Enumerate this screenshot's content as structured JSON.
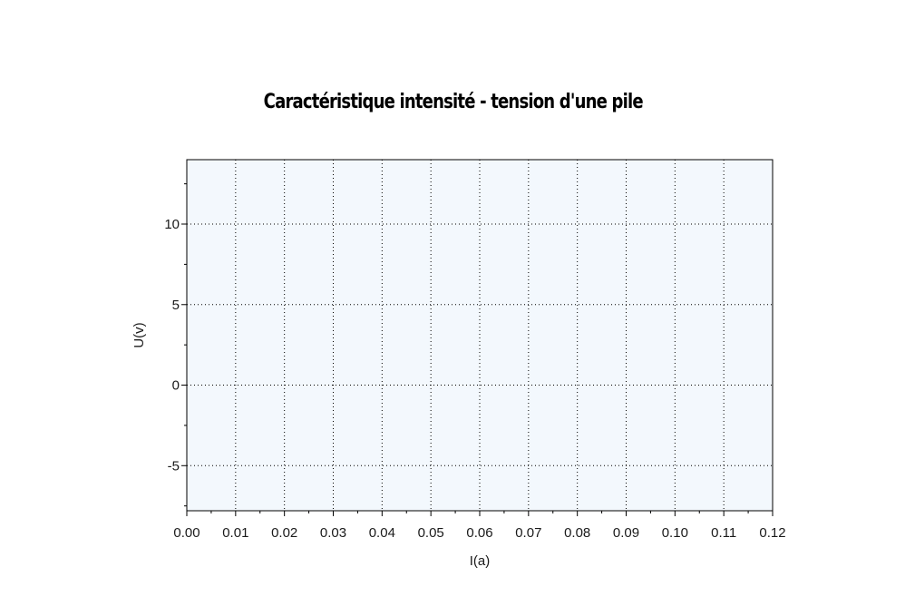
{
  "chart_data": {
    "type": "scatter",
    "title": "Caractéristique intensité - tension d'une pile",
    "xlabel": "I(a)",
    "ylabel": "U(v)",
    "xlim": [
      0.0,
      0.12
    ],
    "ylim": [
      -7.8,
      14.0
    ],
    "x_ticks": [
      "0.00",
      "0.01",
      "0.02",
      "0.03",
      "0.04",
      "0.05",
      "0.06",
      "0.07",
      "0.08",
      "0.09",
      "0.10",
      "0.11",
      "0.12"
    ],
    "x_tick_values": [
      0.0,
      0.01,
      0.02,
      0.03,
      0.04,
      0.05,
      0.06,
      0.07,
      0.08,
      0.09,
      0.1,
      0.11,
      0.12
    ],
    "y_ticks": [
      "-5",
      "0",
      "5",
      "10"
    ],
    "y_tick_values": [
      -5,
      0,
      5,
      10
    ],
    "series": [],
    "grid": true,
    "plot_background": "#f3f8fd"
  }
}
